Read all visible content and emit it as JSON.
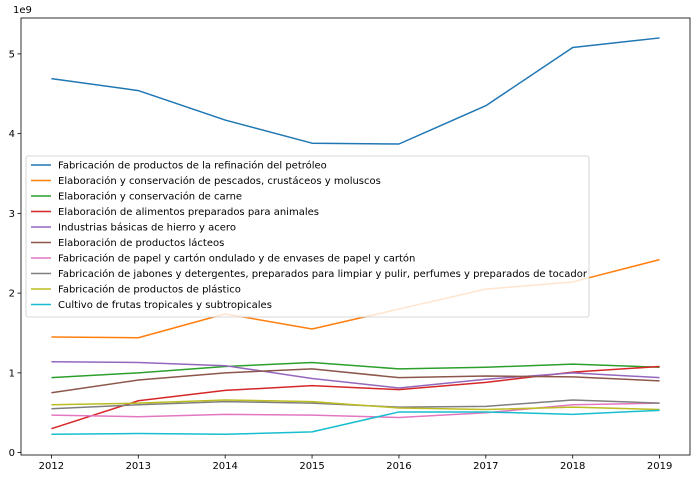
{
  "chart_data": {
    "type": "line",
    "title": "",
    "xlabel": "",
    "ylabel": "",
    "y_offset_label": "1e9",
    "x": [
      2012,
      2013,
      2014,
      2015,
      2016,
      2017,
      2018,
      2019
    ],
    "x_ticks": [
      "2012",
      "2013",
      "2014",
      "2015",
      "2016",
      "2017",
      "2018",
      "2019"
    ],
    "y_ticks": [
      0,
      1,
      2,
      3,
      4,
      5
    ],
    "y_tick_labels": [
      "0",
      "1",
      "2",
      "3",
      "4",
      "5"
    ],
    "xlim": [
      2011.65,
      2019.35
    ],
    "ylim": [
      -0.03,
      5.45
    ],
    "y_unit_multiplier": 1000000000,
    "grid": false,
    "legend_position": "center-left",
    "series": [
      {
        "name": "Fabricación de productos de la refinación del petróleo",
        "color": "#1f77b4",
        "values": [
          4.69,
          4.54,
          4.17,
          3.88,
          3.87,
          4.35,
          5.08,
          5.2
        ]
      },
      {
        "name": "Elaboración y conservación de pescados, crustáceos y moluscos",
        "color": "#ff7f0e",
        "values": [
          1.45,
          1.44,
          1.74,
          1.55,
          1.8,
          2.05,
          2.14,
          2.42
        ]
      },
      {
        "name": "Elaboración y conservación de carne",
        "color": "#2ca02c",
        "values": [
          0.94,
          1.0,
          1.08,
          1.13,
          1.05,
          1.07,
          1.11,
          1.07
        ]
      },
      {
        "name": "Elaboración de alimentos preparados para animales",
        "color": "#d62728",
        "values": [
          0.3,
          0.65,
          0.78,
          0.84,
          0.79,
          0.88,
          1.01,
          1.08
        ]
      },
      {
        "name": "Industrias básicas de hierro y acero",
        "color": "#9467bd",
        "values": [
          1.14,
          1.13,
          1.09,
          0.93,
          0.81,
          0.92,
          1.0,
          0.94
        ]
      },
      {
        "name": "Elaboración de productos lácteos",
        "color": "#8c564b",
        "values": [
          0.75,
          0.91,
          1.0,
          1.05,
          0.94,
          0.96,
          0.95,
          0.9
        ]
      },
      {
        "name": "Fabricación de papel y cartón ondulado y de envases de papel y cartón",
        "color": "#e377c2",
        "values": [
          0.47,
          0.45,
          0.48,
          0.47,
          0.44,
          0.5,
          0.6,
          0.62
        ]
      },
      {
        "name": "Fabricación de jabones y detergentes, preparados para limpiar y pulir, perfumes y preparados de tocador",
        "color": "#7f7f7f",
        "values": [
          0.55,
          0.6,
          0.64,
          0.62,
          0.57,
          0.58,
          0.66,
          0.62
        ]
      },
      {
        "name": "Fabricación de productos de plástico",
        "color": "#bcbd22",
        "values": [
          0.6,
          0.62,
          0.66,
          0.64,
          0.56,
          0.54,
          0.57,
          0.54
        ]
      },
      {
        "name": "Cultivo de frutas tropicales y subtropicales",
        "color": "#17becf",
        "values": [
          0.23,
          0.24,
          0.23,
          0.26,
          0.51,
          0.51,
          0.48,
          0.53
        ]
      }
    ]
  }
}
